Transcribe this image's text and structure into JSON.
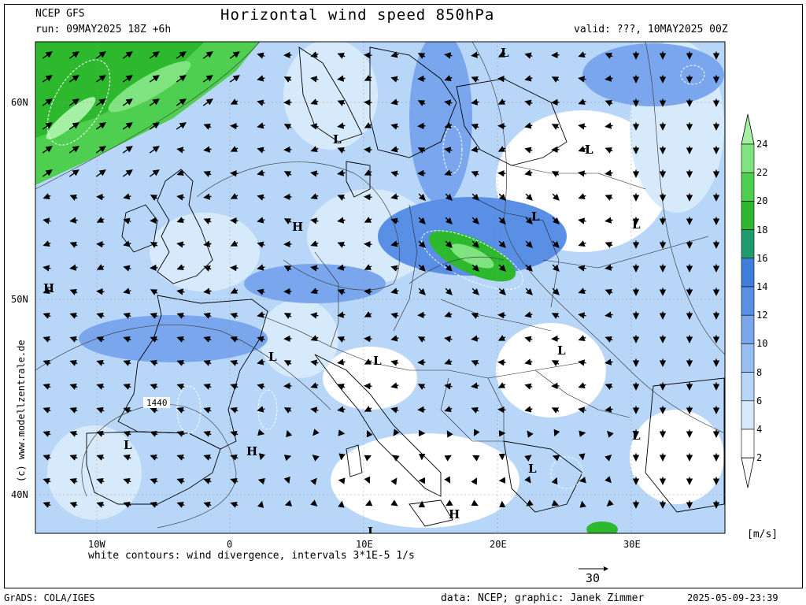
{
  "header": {
    "model": "NCEP GFS",
    "run": "run: 09MAY2025 18Z +6h",
    "title": "Horizontal wind speed 850hPa",
    "valid": "valid: ???, 10MAY2025 00Z"
  },
  "map": {
    "lat_labels": [
      "60N",
      "50N",
      "40N"
    ],
    "lon_labels": [
      "10W",
      "0",
      "10E",
      "20E",
      "30E"
    ],
    "side_credit": "(c) www.modellzentrale.de",
    "contour_label": "1440",
    "pressure_centers": [
      "L",
      "L",
      "L",
      "L",
      "L",
      "L",
      "H",
      "H",
      "H",
      "L",
      "L",
      "L",
      "L",
      "L",
      "H",
      "L",
      "L",
      "L"
    ]
  },
  "colorbar": {
    "levels": [
      "24",
      "22",
      "20",
      "18",
      "16",
      "14",
      "12",
      "10",
      "8",
      "6",
      "4",
      "2"
    ],
    "colors": [
      "#a6f0a6",
      "#7fe37f",
      "#4fcf4f",
      "#2eb82e",
      "#1f9c6e",
      "#3f7fdc",
      "#5a8fe6",
      "#7aa6ee",
      "#98bff3",
      "#b7d6f8",
      "#d6eafb",
      "#ffffff"
    ],
    "unit": "[m/s]"
  },
  "footer": {
    "note": "white contours: wind divergence, intervals 3*1E-5 1/s",
    "ref_vector_value": "30",
    "left": "GrADS: COLA/IGES",
    "data_credit": "data: NCEP; graphic: Janek Zimmer",
    "timestamp": "2025-05-09-23:39"
  }
}
